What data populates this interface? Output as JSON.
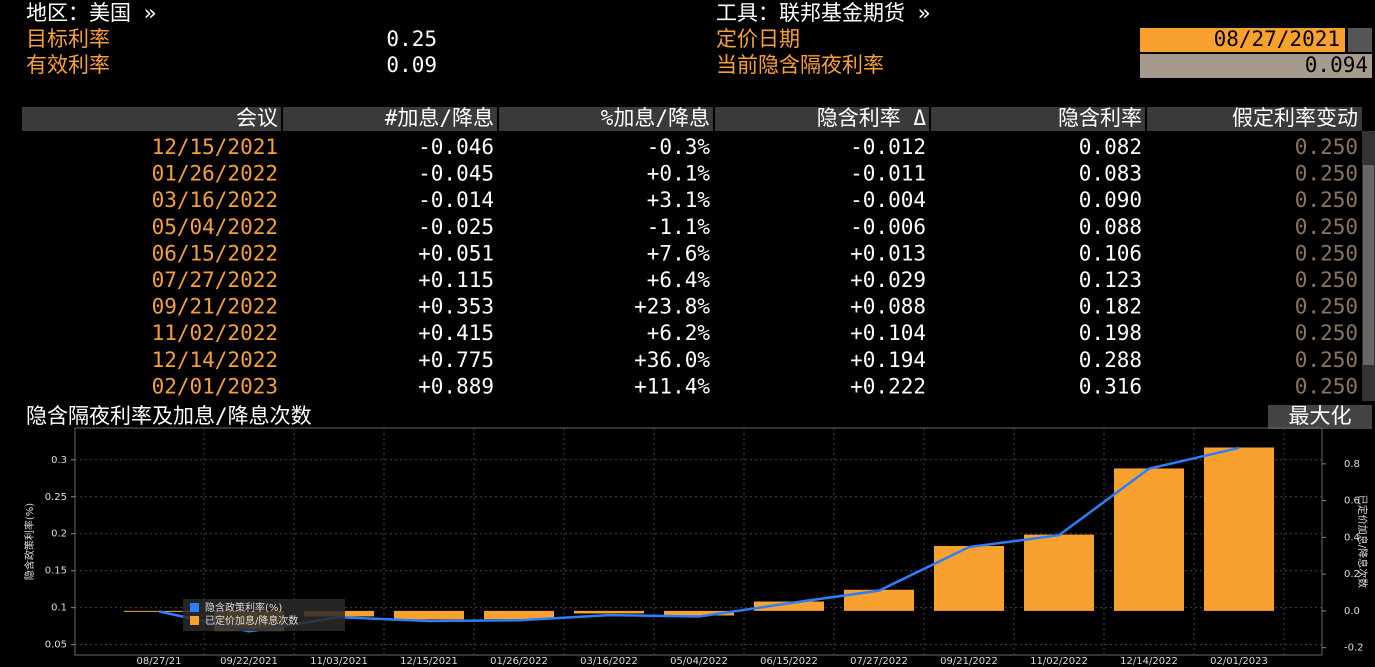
{
  "header": {
    "region": "地区：美国 »",
    "instrument": "工具：联邦基金期货 »",
    "target_rate_label": "目标利率",
    "target_rate": "0.25",
    "effective_rate_label": "有效利率",
    "effective_rate": "0.09",
    "pricing_date_label": "定价日期",
    "pricing_date": "08/27/2021",
    "implied_rate_label": "当前隐含隔夜利率",
    "implied_rate": "0.094"
  },
  "table": {
    "header": [
      "会议",
      "#加息/降息",
      "%加息/降息",
      "隐含利率 Δ",
      "隐含利率",
      "假定利率变动"
    ],
    "rows": [
      [
        "12/15/2021",
        "-0.046",
        "-0.3%",
        "-0.012",
        "0.082",
        "0.250"
      ],
      [
        "01/26/2022",
        "-0.045",
        "+0.1%",
        "-0.011",
        "0.083",
        "0.250"
      ],
      [
        "03/16/2022",
        "-0.014",
        "+3.1%",
        "-0.004",
        "0.090",
        "0.250"
      ],
      [
        "05/04/2022",
        "-0.025",
        "-1.1%",
        "-0.006",
        "0.088",
        "0.250"
      ],
      [
        "06/15/2022",
        "+0.051",
        "+7.6%",
        "+0.013",
        "0.106",
        "0.250"
      ],
      [
        "07/27/2022",
        "+0.115",
        "+6.4%",
        "+0.029",
        "0.123",
        "0.250"
      ],
      [
        "09/21/2022",
        "+0.353",
        "+23.8%",
        "+0.088",
        "0.182",
        "0.250"
      ],
      [
        "11/02/2022",
        "+0.415",
        "+6.2%",
        "+0.104",
        "0.198",
        "0.250"
      ],
      [
        "12/14/2022",
        "+0.775",
        "+36.0%",
        "+0.194",
        "0.288",
        "0.250"
      ],
      [
        "02/01/2023",
        "+0.889",
        "+11.4%",
        "+0.222",
        "0.316",
        "0.250"
      ]
    ]
  },
  "maximize": "最大化",
  "chart_data": {
    "type": "bar-line",
    "title": "隐含隔夜利率及加息/降息次数",
    "y_label": "隐含政策利率(%)",
    "y2_label": "已定价加息/降息次数",
    "categories": [
      "08/27/21",
      "09/22/2021",
      "11/03/2021",
      "12/15/2021",
      "01/26/2022",
      "03/16/2022",
      "05/04/2022",
      "06/15/2022",
      "07/27/2022",
      "09/21/2022",
      "11/02/2022",
      "12/14/2022",
      "02/01/2023"
    ],
    "series": [
      {
        "name": "隐含政策利率(%)",
        "type": "line",
        "color": "#2a7fff",
        "values": [
          0.095,
          0.068,
          0.087,
          0.082,
          0.083,
          0.09,
          0.088,
          0.106,
          0.123,
          0.182,
          0.198,
          0.288,
          0.316
        ]
      },
      {
        "name": "已定价加息/降息次数",
        "type": "bar",
        "axis": "y2",
        "color": "#f9a12e",
        "values": [
          0,
          -0.11,
          -0.03,
          -0.046,
          -0.045,
          -0.014,
          -0.025,
          0.051,
          0.115,
          0.353,
          0.415,
          0.775,
          0.889
        ]
      }
    ],
    "ylim": [
      0.036,
      0.343
    ],
    "yticks": [
      0.05,
      0.1,
      0.15,
      0.2,
      0.25,
      0.3
    ],
    "y2lim": [
      -0.24,
      0.995
    ],
    "y2ticks": [
      -0.2,
      {
        "value": 0,
        "label": "0.0"
      },
      0.2,
      0.4,
      0.6,
      0.8
    ],
    "grid": true
  }
}
